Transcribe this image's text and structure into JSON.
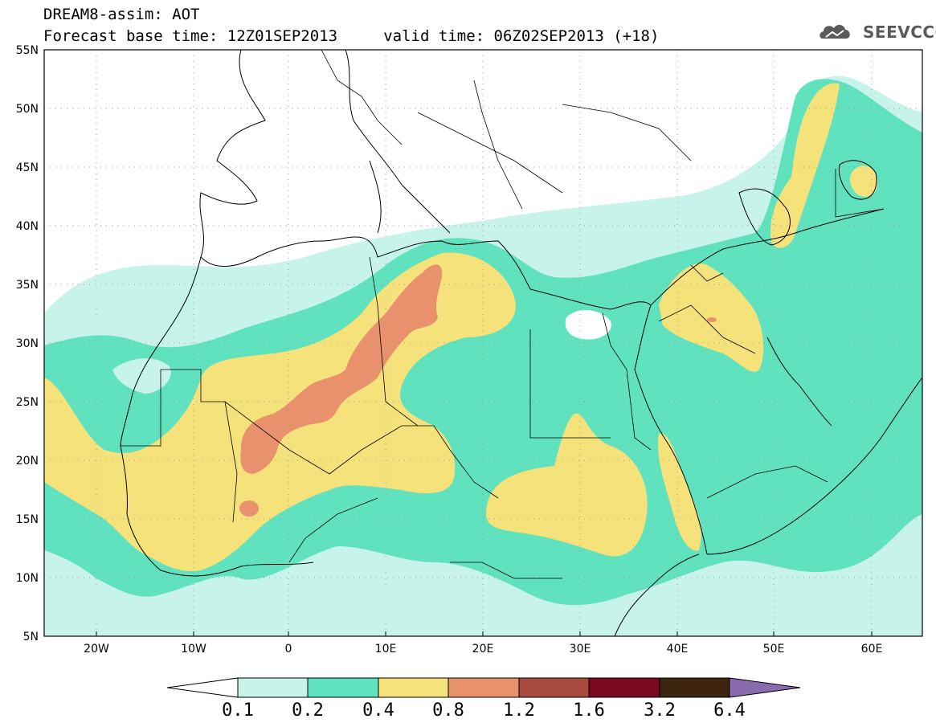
{
  "header": {
    "line1": "DREAM8-assim: AOT",
    "line2": "Forecast base time: 12Z01SEP2013     valid time: 06Z02SEP2013 (+18)"
  },
  "logo": {
    "text": "SEEVCCC",
    "icon": "cloud-icon",
    "color": "#5a5a5a"
  },
  "map": {
    "variable": "AOT",
    "lat_range": [
      5,
      55
    ],
    "lon_range": [
      -25,
      65
    ],
    "lat_labels": [
      "55N",
      "50N",
      "45N",
      "40N",
      "35N",
      "30N",
      "25N",
      "20N",
      "15N",
      "10N",
      "5N"
    ],
    "lon_labels": [
      "20W",
      "10W",
      "0",
      "10E",
      "20E",
      "30E",
      "40E",
      "50E",
      "60E"
    ],
    "grid": "dotted"
  },
  "colorbar": {
    "labels": [
      "0.1",
      "0.2",
      "0.4",
      "0.8",
      "1.2",
      "1.6",
      "3.2",
      "6.4"
    ],
    "colors": [
      "#c7f3ea",
      "#5fe2bd",
      "#f5e27a",
      "#e8916c",
      "#a8493d",
      "#7a0a22",
      "#3c2410",
      "#8b6bb0"
    ],
    "under_color": "#ffffff"
  }
}
